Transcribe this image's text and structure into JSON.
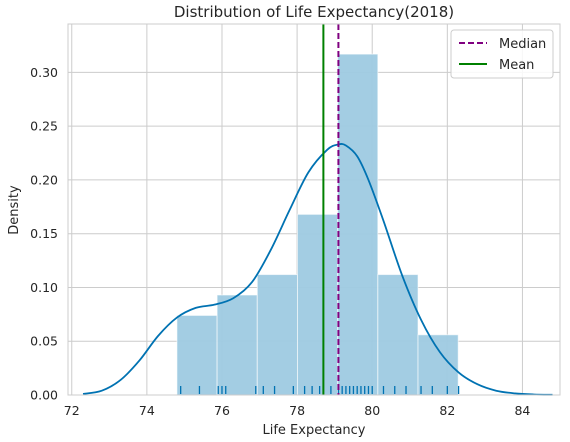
{
  "chart_data": {
    "type": "bar",
    "title": "Distribution of Life Expectancy(2018)",
    "xlabel": "Life Expectancy",
    "ylabel": "Density",
    "xlim": [
      71.9,
      85.0
    ],
    "ylim": [
      0,
      0.345
    ],
    "xticks": [
      72,
      74,
      76,
      78,
      80,
      82,
      84
    ],
    "yticks": [
      0.0,
      0.05,
      0.1,
      0.15,
      0.2,
      0.25,
      0.3
    ],
    "ytick_labels": [
      "0.00",
      "0.05",
      "0.10",
      "0.15",
      "0.20",
      "0.25",
      "0.30"
    ],
    "grid": true,
    "legend_position": "top-right",
    "histogram": {
      "bin_edges": [
        74.8,
        75.87,
        76.94,
        78.01,
        79.08,
        80.15,
        81.22,
        82.29
      ],
      "density": [
        0.074,
        0.093,
        0.112,
        0.168,
        0.317,
        0.112,
        0.056
      ],
      "color": "#9ecae1"
    },
    "kde": {
      "x": [
        72.3,
        72.8,
        73.3,
        73.8,
        74.3,
        74.8,
        75.3,
        75.8,
        76.3,
        76.8,
        77.3,
        77.8,
        78.3,
        78.8,
        79.1,
        79.3,
        79.6,
        79.9,
        80.3,
        80.8,
        81.3,
        81.8,
        82.3,
        82.8,
        83.3,
        83.8,
        84.3,
        84.8
      ],
      "y": [
        0.001,
        0.004,
        0.014,
        0.032,
        0.055,
        0.072,
        0.081,
        0.084,
        0.09,
        0.105,
        0.135,
        0.172,
        0.207,
        0.228,
        0.233,
        0.232,
        0.222,
        0.2,
        0.162,
        0.111,
        0.07,
        0.04,
        0.021,
        0.01,
        0.004,
        0.0015,
        0.0005,
        0.0002
      ],
      "color": "#0072b2"
    },
    "rug": {
      "values": [
        74.9,
        75.4,
        75.9,
        76.0,
        76.1,
        76.9,
        77.1,
        77.4,
        77.9,
        78.2,
        78.4,
        78.6,
        78.9,
        79.1,
        79.2,
        79.3,
        79.4,
        79.5,
        79.6,
        79.7,
        79.8,
        79.9,
        80.0,
        80.3,
        80.6,
        80.9,
        81.3,
        81.6,
        82.0,
        82.3
      ],
      "color": "#0072b2"
    },
    "lines": [
      {
        "name": "Median",
        "x": 79.1,
        "color": "#800080",
        "style": "dashed"
      },
      {
        "name": "Mean",
        "x": 78.7,
        "color": "#008000",
        "style": "solid"
      }
    ],
    "legend": [
      "Median",
      "Mean"
    ]
  }
}
